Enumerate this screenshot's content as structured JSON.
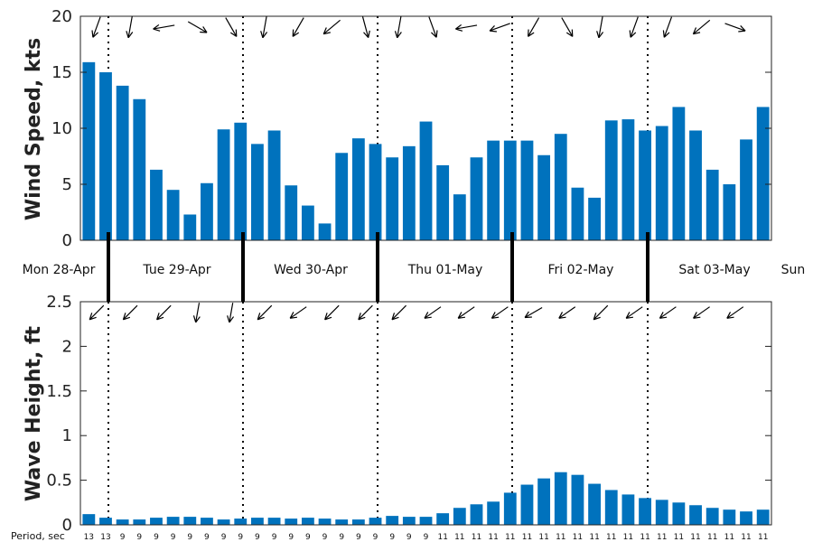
{
  "chart_data": [
    {
      "type": "bar",
      "ylabel": "Wind Speed, kts",
      "ylim": [
        0,
        20
      ],
      "yticks": [
        0,
        5,
        10,
        15,
        20
      ],
      "color": "#0072bd",
      "values": [
        15.9,
        15.0,
        13.8,
        12.6,
        6.3,
        4.5,
        2.3,
        5.1,
        9.9,
        10.5,
        8.6,
        9.8,
        4.9,
        3.1,
        1.5,
        7.8,
        9.1,
        8.6,
        7.4,
        8.4,
        10.6,
        6.7,
        4.1,
        7.4,
        8.9,
        8.9,
        8.9,
        7.6,
        9.5,
        4.7,
        3.8,
        10.7,
        10.8,
        9.8,
        10.2,
        11.9,
        9.8,
        6.3,
        5.0,
        9.0,
        11.9
      ],
      "direction_arrows_deg": [
        110,
        100,
        170,
        30,
        60,
        100,
        120,
        140,
        75,
        100,
        70,
        170,
        160,
        120,
        60,
        100,
        110,
        110,
        140,
        20,
        135,
        70,
        90,
        110,
        110,
        110,
        85,
        110,
        110,
        150
      ],
      "grid": false,
      "legend": "none"
    },
    {
      "type": "bar",
      "ylabel": "Wave Height, ft",
      "ylim": [
        0,
        2.5
      ],
      "yticks": [
        "0",
        "0.5",
        "1",
        "1.5",
        "2",
        "2.5"
      ],
      "color": "#0072bd",
      "values": [
        0.12,
        0.08,
        0.06,
        0.06,
        0.08,
        0.09,
        0.09,
        0.08,
        0.06,
        0.07,
        0.08,
        0.08,
        0.07,
        0.08,
        0.07,
        0.06,
        0.06,
        0.08,
        0.1,
        0.09,
        0.09,
        0.13,
        0.19,
        0.23,
        0.26,
        0.36,
        0.45,
        0.52,
        0.59,
        0.56,
        0.46,
        0.39,
        0.34,
        0.3,
        0.28,
        0.25,
        0.22,
        0.19,
        0.17,
        0.15,
        0.17
      ],
      "direction_arrows_deg": [
        135,
        135,
        135,
        100,
        100,
        135,
        145,
        135,
        135,
        135,
        145,
        145,
        145,
        150,
        145,
        135,
        145,
        145,
        145,
        145,
        145,
        135
      ],
      "grid": false,
      "legend": "none"
    }
  ],
  "day_labels": [
    "Mon 28-Apr",
    "Tue 29-Apr",
    "Wed 30-Apr",
    "Thu 01-May",
    "Fri 02-May",
    "Sat 03-May",
    "Sun"
  ],
  "period_title": "Period, sec",
  "periods": [
    "13",
    "13",
    "9",
    "9",
    "9",
    "9",
    "9",
    "9",
    "9",
    "9",
    "9",
    "9",
    "9",
    "9",
    "9",
    "9",
    "9",
    "9",
    "9",
    "9",
    "9",
    "11",
    "11",
    "11",
    "11",
    "11",
    "11",
    "11",
    "11",
    "11",
    "11",
    "11",
    "11",
    "11",
    "11",
    "11",
    "11",
    "11",
    "11",
    "11",
    "11"
  ]
}
